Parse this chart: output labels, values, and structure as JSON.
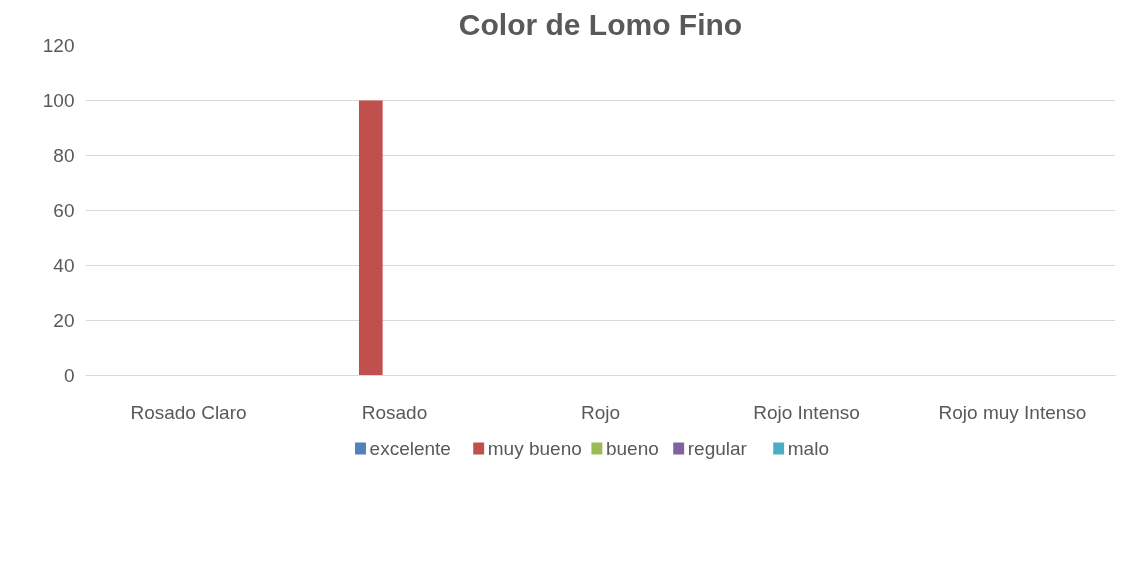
{
  "chart_data": {
    "type": "bar",
    "title": "Color de Lomo Fino",
    "categories": [
      "Rosado Claro",
      "Rosado",
      "Rojo",
      "Rojo Intenso",
      "Rojo muy Intenso"
    ],
    "series": [
      {
        "name": "excelente",
        "color": "#4f81bd",
        "values": [
          0,
          0,
          0,
          0,
          0
        ]
      },
      {
        "name": "muy bueno",
        "color": "#c0504d",
        "values": [
          0,
          100,
          0,
          0,
          0
        ]
      },
      {
        "name": "bueno",
        "color": "#9bbb59",
        "values": [
          0,
          0,
          0,
          0,
          0
        ]
      },
      {
        "name": "regular",
        "color": "#8064a2",
        "values": [
          0,
          0,
          0,
          0,
          0
        ]
      },
      {
        "name": "malo",
        "color": "#4bacc6",
        "values": [
          0,
          0,
          0,
          0,
          0
        ]
      }
    ],
    "ylim": [
      0,
      120
    ],
    "yticks": [
      0,
      20,
      40,
      60,
      80,
      100,
      120
    ],
    "grid": "y",
    "legend": "bottom"
  }
}
